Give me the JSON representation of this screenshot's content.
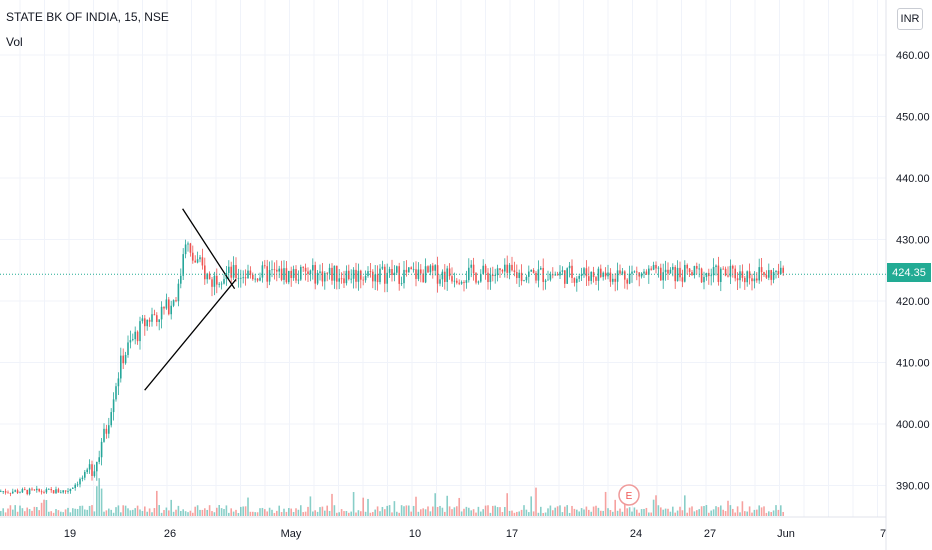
{
  "header": {
    "title": "STATE BK OF INDIA, 15, NSE",
    "indicator": "Vol"
  },
  "currency_button": "INR",
  "last_price": "424.35",
  "earnings_marker": "E",
  "colors": {
    "up": "#26a69a",
    "down": "#ef5350",
    "grid": "#f0f3fa",
    "price_line": "#22ab94",
    "trend": "#000000"
  },
  "chart_data": {
    "type": "candlestick",
    "y_ticks": [
      "460.00",
      "450.00",
      "440.00",
      "430.00",
      "420.00",
      "410.00",
      "400.00",
      "390.00"
    ],
    "y_tick_values": [
      460,
      450,
      440,
      430,
      420,
      410,
      400,
      390
    ],
    "x_ticks": [
      "19",
      "26",
      "May",
      "10",
      "17",
      "24",
      "27",
      "Jun",
      "7"
    ],
    "ylim": [
      383.5,
      467
    ],
    "grid": true,
    "last_price": 424.35,
    "price_path": [
      [
        0,
        389
      ],
      [
        7,
        389.5
      ],
      [
        10,
        389.2
      ],
      [
        17,
        389
      ],
      [
        19,
        389.1
      ],
      [
        20,
        391
      ],
      [
        21,
        393.5
      ],
      [
        21.8,
        399
      ],
      [
        22.4,
        406
      ],
      [
        23,
        411
      ],
      [
        23.8,
        414
      ],
      [
        24.4,
        416
      ],
      [
        25,
        417.5
      ],
      [
        26,
        418.5
      ],
      [
        27,
        422
      ],
      [
        27.4,
        431
      ],
      [
        27.8,
        427
      ],
      [
        28.4,
        426
      ],
      [
        29,
        424
      ],
      [
        29.3,
        423
      ],
      [
        29.7,
        424.3
      ],
      [
        30,
        424.35
      ]
    ],
    "trendlines": [
      {
        "from": [
          24.6,
          405.5
        ],
        "to": [
          31.1,
          423.5
        ]
      },
      {
        "from": [
          27.3,
          435
        ],
        "to": [
          31.0,
          422
        ]
      }
    ],
    "series": [
      {
        "values": "candles + volume bars, last value 424.35"
      }
    ]
  }
}
